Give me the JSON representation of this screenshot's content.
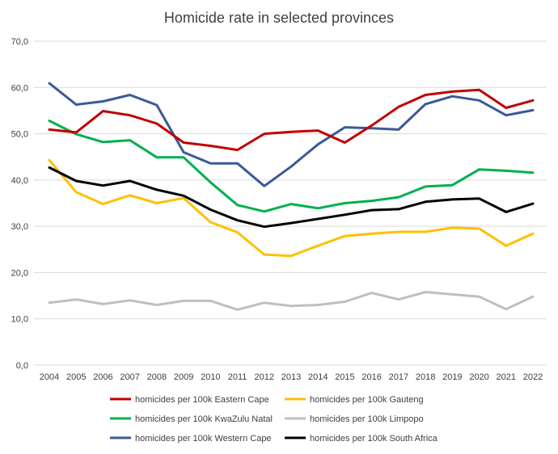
{
  "chart_data": {
    "type": "line",
    "title": "Homicide rate in selected provinces",
    "xlabel": "",
    "ylabel": "",
    "ylim": [
      0,
      70
    ],
    "y_ticks": [
      "0,0",
      "10,0",
      "20,0",
      "30,0",
      "40,0",
      "50,0",
      "60,0",
      "70,0"
    ],
    "y_tick_values": [
      0,
      10,
      20,
      30,
      40,
      50,
      60,
      70
    ],
    "grid": true,
    "legend_position": "bottom",
    "categories": [
      "2004",
      "2005",
      "2006",
      "2007",
      "2008",
      "2009",
      "2010",
      "2011",
      "2012",
      "2013",
      "2014",
      "2015",
      "2016",
      "2017",
      "2018",
      "2019",
      "2020",
      "2021",
      "2022"
    ],
    "series": [
      {
        "name": "homicides per 100k Eastern Cape",
        "color": "#c00000",
        "values": [
          50.9,
          50.3,
          54.9,
          54.0,
          52.2,
          48.1,
          47.4,
          46.5,
          50.0,
          50.4,
          50.7,
          48.1,
          51.8,
          55.8,
          58.4,
          59.1,
          59.5,
          55.6,
          57.2
        ]
      },
      {
        "name": "homicides per 100k Gauteng",
        "color": "#ffc000",
        "values": [
          44.3,
          37.4,
          34.8,
          36.7,
          35.0,
          36.1,
          30.9,
          28.7,
          23.9,
          23.6,
          25.8,
          27.9,
          28.4,
          28.8,
          28.8,
          29.7,
          29.5,
          25.8,
          28.4
        ]
      },
      {
        "name": "homicides per 100k KwaZulu Natal",
        "color": "#00b050",
        "values": [
          52.8,
          49.9,
          48.2,
          48.6,
          44.9,
          44.9,
          39.5,
          34.6,
          33.2,
          34.8,
          33.9,
          35.0,
          35.5,
          36.3,
          38.6,
          38.9,
          42.3,
          42.0,
          41.6
        ]
      },
      {
        "name": "homicides per 100k Limpopo",
        "color": "#bfbfbf",
        "values": [
          13.5,
          14.2,
          13.2,
          14.0,
          13.0,
          13.9,
          13.9,
          12.0,
          13.5,
          12.8,
          13.0,
          13.7,
          15.6,
          14.2,
          15.8,
          15.3,
          14.8,
          12.1,
          14.8
        ]
      },
      {
        "name": "homicides per 100k Western Cape",
        "color": "#3a5a98",
        "values": [
          60.9,
          56.3,
          57.0,
          58.4,
          56.2,
          46.0,
          43.6,
          43.6,
          38.7,
          42.9,
          47.7,
          51.4,
          51.2,
          50.9,
          56.4,
          58.1,
          57.2,
          54.0,
          55.1
        ]
      },
      {
        "name": "homicides per 100k South Africa",
        "color": "#000000",
        "values": [
          42.7,
          39.8,
          38.8,
          39.8,
          37.9,
          36.6,
          33.6,
          31.3,
          29.9,
          30.7,
          31.6,
          32.5,
          33.5,
          33.7,
          35.3,
          35.8,
          36.0,
          33.1,
          34.9
        ]
      }
    ]
  }
}
